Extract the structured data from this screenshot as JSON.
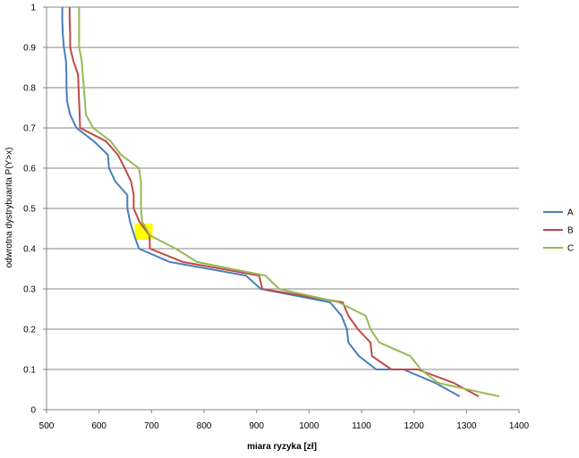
{
  "chart_data": {
    "type": "line",
    "title": "",
    "xlabel": "miara ryzyka  [zł]",
    "ylabel": "odwrotna dystrybuanta  P(Y>x)",
    "xlim": [
      500,
      1400
    ],
    "ylim": [
      0,
      1
    ],
    "x_ticks": [
      "500",
      "600",
      "700",
      "800",
      "900",
      "1000",
      "1100",
      "1200",
      "1300",
      "1400"
    ],
    "y_ticks": [
      "0",
      "0.1",
      "0.2",
      "0.3",
      "0.4",
      "0.5",
      "0.6",
      "0.7",
      "0.8",
      "0.9",
      "1"
    ],
    "grid": "horizontal",
    "legend_position": "right",
    "highlight": {
      "color": "#ffff00",
      "x": 685,
      "y": 0.44
    },
    "series": [
      {
        "name": "A",
        "color": "#4a7ebb",
        "points": [
          [
            1287,
            0.033
          ],
          [
            1240,
            0.067
          ],
          [
            1180,
            0.1
          ],
          [
            1128,
            0.1
          ],
          [
            1095,
            0.133
          ],
          [
            1075,
            0.167
          ],
          [
            1072,
            0.2
          ],
          [
            1062,
            0.233
          ],
          [
            1040,
            0.267
          ],
          [
            908,
            0.3
          ],
          [
            880,
            0.333
          ],
          [
            735,
            0.367
          ],
          [
            676,
            0.4
          ],
          [
            667,
            0.433
          ],
          [
            659,
            0.467
          ],
          [
            654,
            0.5
          ],
          [
            654,
            0.533
          ],
          [
            631,
            0.567
          ],
          [
            619,
            0.6
          ],
          [
            617,
            0.633
          ],
          [
            590,
            0.667
          ],
          [
            557,
            0.7
          ],
          [
            545,
            0.733
          ],
          [
            539,
            0.767
          ],
          [
            538,
            0.8
          ],
          [
            538,
            0.833
          ],
          [
            537,
            0.867
          ],
          [
            533,
            0.9
          ],
          [
            531,
            0.933
          ],
          [
            530,
            0.967
          ],
          [
            530,
            1.0
          ]
        ]
      },
      {
        "name": "B",
        "color": "#be4b48",
        "points": [
          [
            1323,
            0.033
          ],
          [
            1275,
            0.067
          ],
          [
            1207,
            0.1
          ],
          [
            1157,
            0.1
          ],
          [
            1120,
            0.133
          ],
          [
            1117,
            0.167
          ],
          [
            1093,
            0.2
          ],
          [
            1075,
            0.233
          ],
          [
            1064,
            0.267
          ],
          [
            911,
            0.3
          ],
          [
            905,
            0.333
          ],
          [
            760,
            0.367
          ],
          [
            697,
            0.4
          ],
          [
            696,
            0.433
          ],
          [
            677,
            0.467
          ],
          [
            666,
            0.5
          ],
          [
            666,
            0.533
          ],
          [
            661,
            0.567
          ],
          [
            649,
            0.6
          ],
          [
            636,
            0.633
          ],
          [
            613,
            0.667
          ],
          [
            564,
            0.7
          ],
          [
            563,
            0.733
          ],
          [
            562,
            0.767
          ],
          [
            561,
            0.8
          ],
          [
            560,
            0.833
          ],
          [
            551,
            0.867
          ],
          [
            545,
            0.9
          ],
          [
            545,
            0.933
          ],
          [
            544,
            0.967
          ],
          [
            544,
            1.0
          ]
        ]
      },
      {
        "name": "C",
        "color": "#98b954",
        "points": [
          [
            1362,
            0.033
          ],
          [
            1245,
            0.067
          ],
          [
            1213,
            0.1
          ],
          [
            1193,
            0.133
          ],
          [
            1134,
            0.167
          ],
          [
            1117,
            0.2
          ],
          [
            1108,
            0.233
          ],
          [
            1056,
            0.267
          ],
          [
            943,
            0.3
          ],
          [
            917,
            0.333
          ],
          [
            787,
            0.367
          ],
          [
            746,
            0.4
          ],
          [
            697,
            0.433
          ],
          [
            682,
            0.467
          ],
          [
            680,
            0.5
          ],
          [
            680,
            0.533
          ],
          [
            680,
            0.567
          ],
          [
            676,
            0.6
          ],
          [
            642,
            0.633
          ],
          [
            622,
            0.667
          ],
          [
            589,
            0.7
          ],
          [
            575,
            0.733
          ],
          [
            573,
            0.767
          ],
          [
            571,
            0.8
          ],
          [
            569,
            0.833
          ],
          [
            567,
            0.867
          ],
          [
            562,
            0.9
          ],
          [
            562,
            0.933
          ],
          [
            562,
            0.967
          ],
          [
            562,
            1.0
          ]
        ]
      }
    ]
  }
}
